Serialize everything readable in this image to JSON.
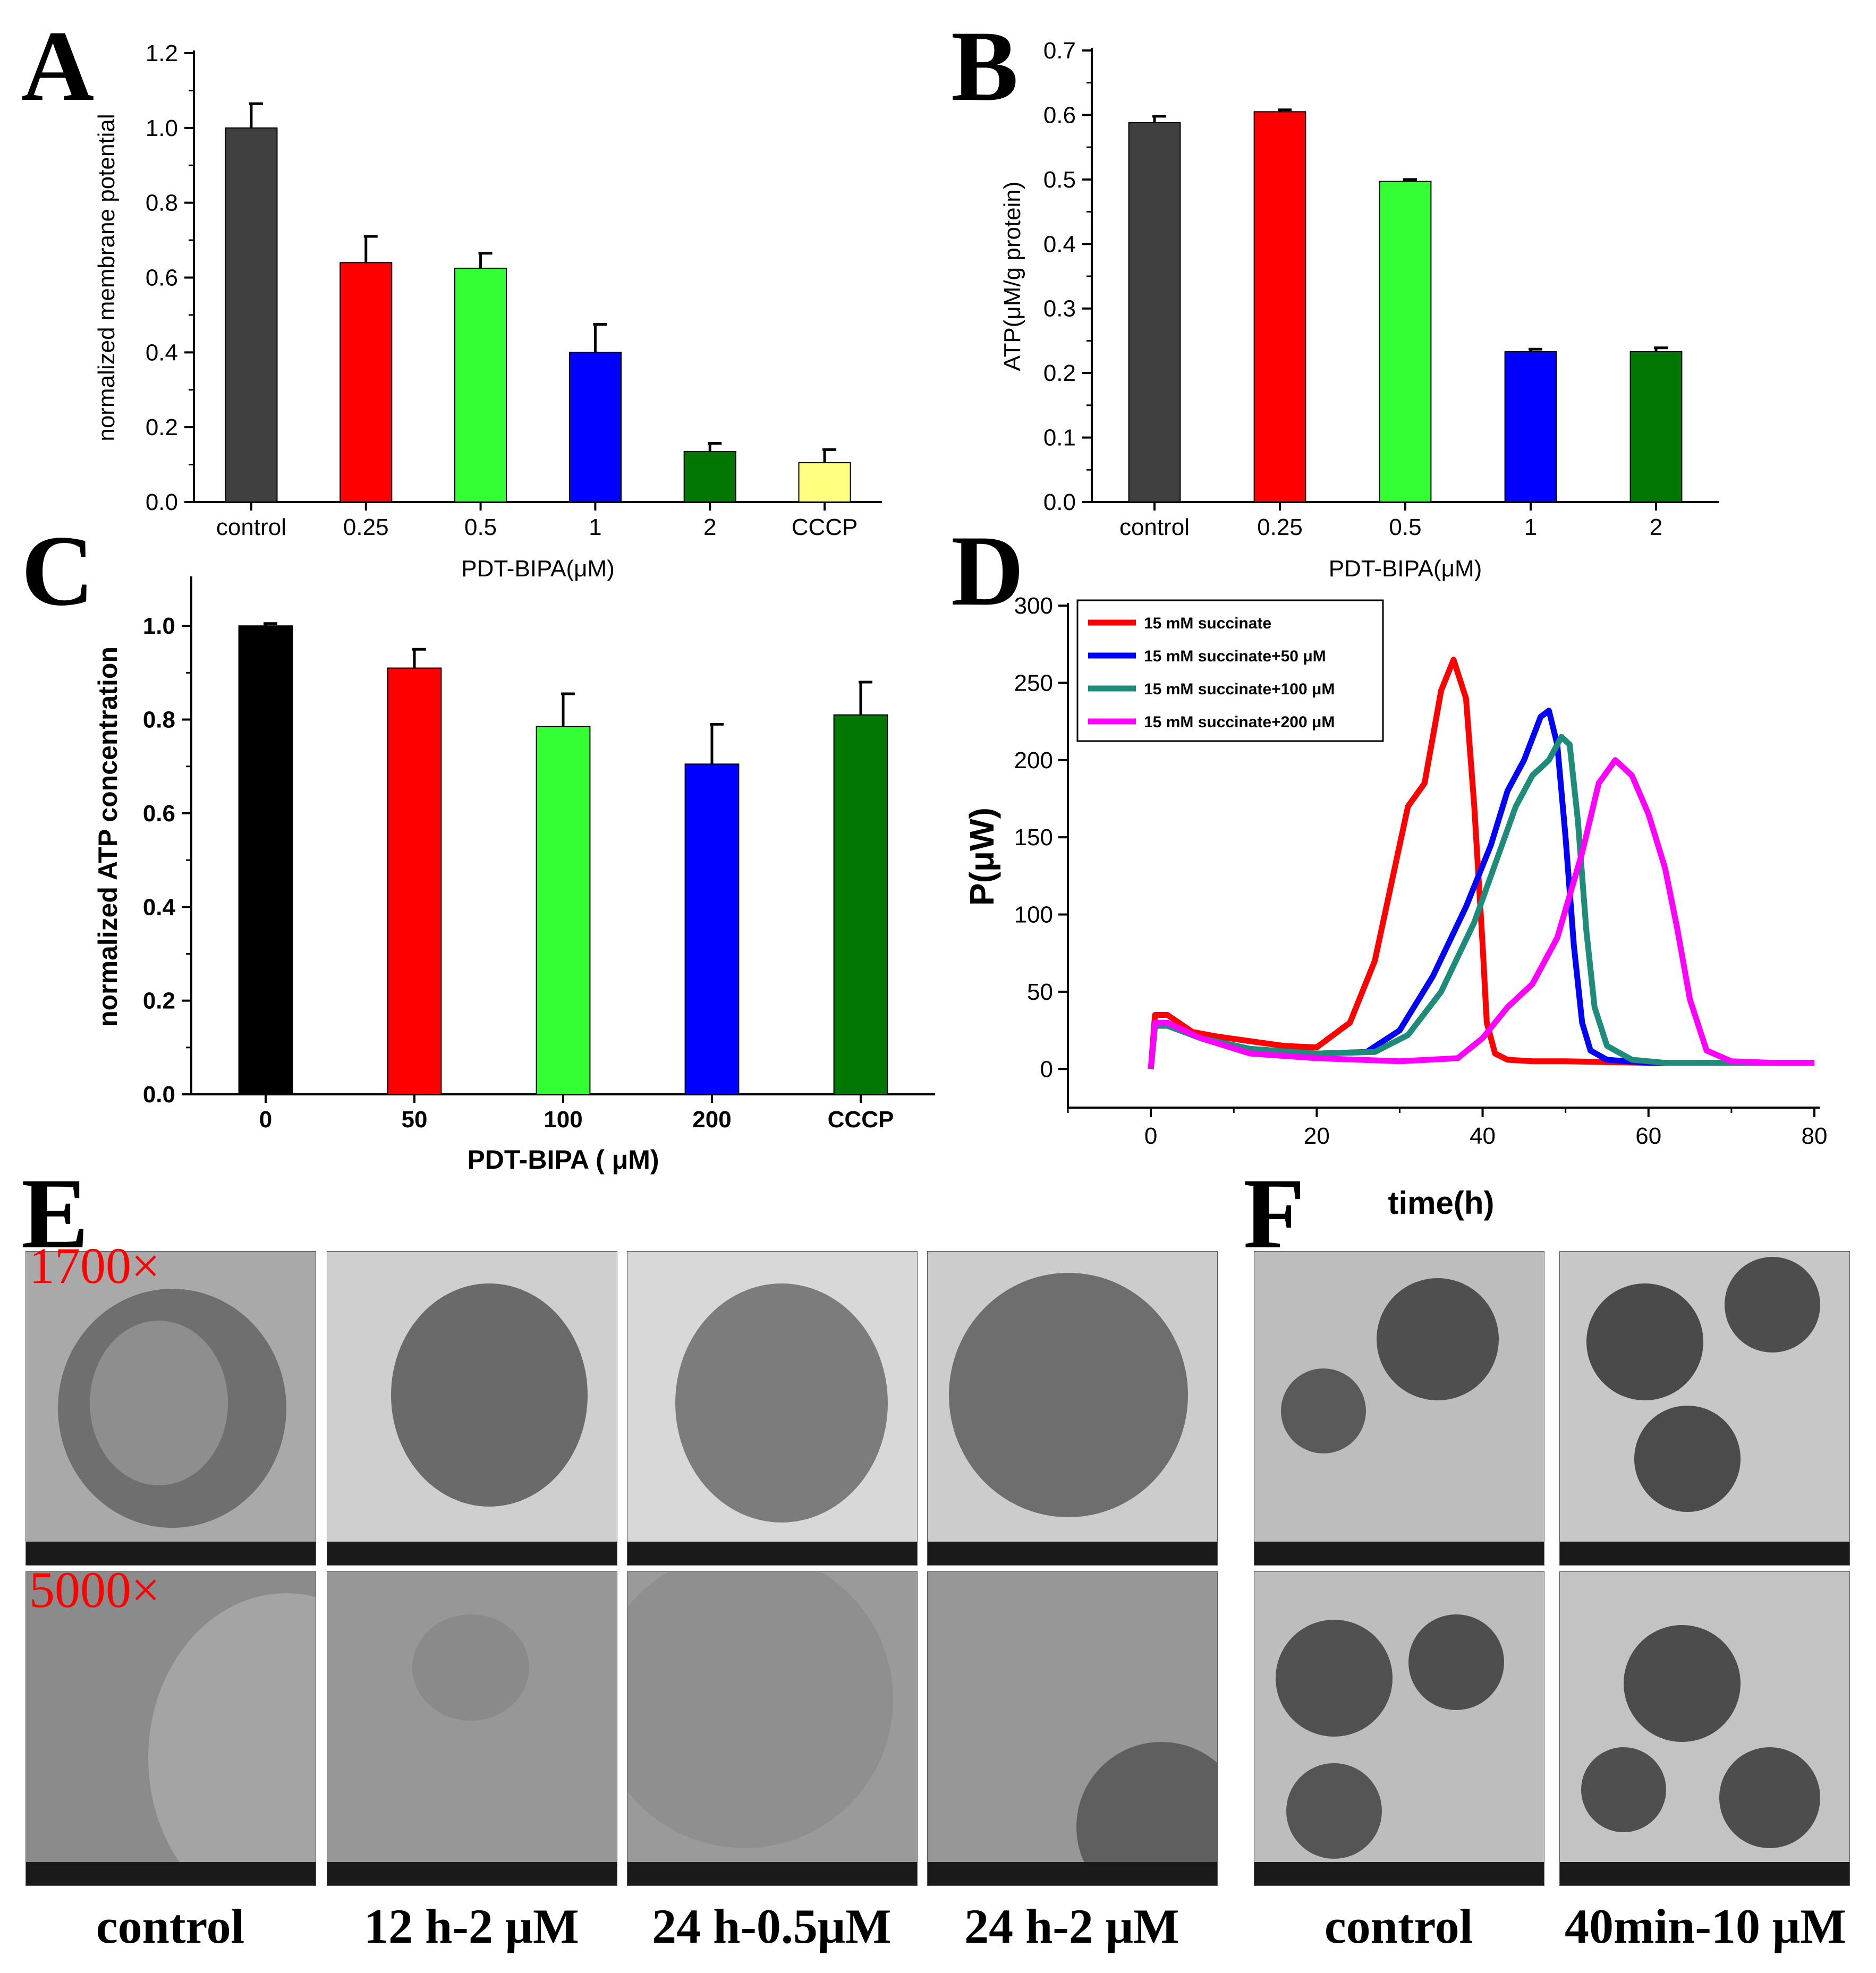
{
  "panels": {
    "A": "A",
    "B": "B",
    "C": "C",
    "D": "D",
    "E": "E",
    "F": "F"
  },
  "chart_data": [
    {
      "id": "A",
      "type": "bar",
      "title": "",
      "xlabel": "PDT-BIPA(μM)",
      "ylabel": "normalized membrane potential",
      "categories": [
        "control",
        "0.25",
        "0.5",
        "1",
        "2",
        "CCCP"
      ],
      "values": [
        1.0,
        0.64,
        0.625,
        0.4,
        0.135,
        0.105
      ],
      "errors": [
        0.065,
        0.07,
        0.04,
        0.075,
        0.022,
        0.035
      ],
      "colors": [
        "#404040",
        "#ff0000",
        "#33ff33",
        "#0000ff",
        "#007700",
        "#ffff80"
      ],
      "ylim": [
        0,
        1.2
      ],
      "yticks": [
        0.0,
        0.2,
        0.4,
        0.6,
        0.8,
        1.0,
        1.2
      ]
    },
    {
      "id": "B",
      "type": "bar",
      "title": "",
      "xlabel": "PDT-BIPA(μM)",
      "ylabel": "ATP(μM/g protein)",
      "categories": [
        "control",
        "0.25",
        "0.5",
        "1",
        "2"
      ],
      "values": [
        0.588,
        0.605,
        0.497,
        0.233,
        0.233
      ],
      "errors": [
        0.01,
        0.003,
        0.003,
        0.004,
        0.006
      ],
      "colors": [
        "#404040",
        "#ff0000",
        "#33ff33",
        "#0000ff",
        "#007700"
      ],
      "ylim": [
        0,
        0.7
      ],
      "yticks": [
        0.0,
        0.1,
        0.2,
        0.3,
        0.4,
        0.5,
        0.6,
        0.7
      ]
    },
    {
      "id": "C",
      "type": "bar",
      "title": "",
      "xlabel": "PDT-BIPA ( μM)",
      "ylabel": "normalized ATP concentration",
      "categories": [
        "0",
        "50",
        "100",
        "200",
        "CCCP"
      ],
      "values": [
        1.0,
        0.91,
        0.785,
        0.705,
        0.81
      ],
      "errors": [
        0.005,
        0.04,
        0.07,
        0.085,
        0.07
      ],
      "colors": [
        "#000000",
        "#ff0000",
        "#33ff33",
        "#0000ff",
        "#007700"
      ],
      "ylim": [
        0,
        1.1
      ],
      "yticks": [
        0.0,
        0.2,
        0.4,
        0.6,
        0.8,
        1.0
      ]
    },
    {
      "id": "D",
      "type": "line",
      "title": "",
      "xlabel": "time(h)",
      "ylabel": "P(μW)",
      "xlim": [
        -10,
        80
      ],
      "ylim": [
        -25,
        300
      ],
      "xticks": [
        0,
        20,
        40,
        60,
        80
      ],
      "yticks": [
        0,
        50,
        100,
        150,
        200,
        250,
        300
      ],
      "legend_position": "top-left",
      "series": [
        {
          "name": "15 mM succinate",
          "color": "#ff0000",
          "x": [
            0,
            0.5,
            2,
            5,
            8,
            12,
            16,
            20,
            24,
            27,
            30,
            31,
            33,
            35,
            36.5,
            38,
            39,
            40,
            40.5,
            41.5,
            43,
            46,
            50,
            60,
            70,
            80
          ],
          "y": [
            0,
            35,
            35,
            24,
            21,
            18,
            15,
            14,
            30,
            70,
            145,
            170,
            185,
            245,
            265,
            240,
            170,
            80,
            30,
            10,
            6,
            5,
            5,
            4,
            4,
            4
          ]
        },
        {
          "name": "15 mM succinate+50 μM",
          "color": "#0000ff",
          "x": [
            0,
            0.5,
            2,
            6,
            12,
            20,
            26,
            30,
            34,
            38,
            41,
            43,
            45,
            47,
            48,
            49,
            50,
            51,
            52,
            53,
            55,
            60,
            70,
            80
          ],
          "y": [
            0,
            28,
            28,
            20,
            13,
            10,
            11,
            25,
            60,
            105,
            145,
            180,
            200,
            228,
            232,
            210,
            150,
            80,
            30,
            12,
            6,
            4,
            4,
            4
          ]
        },
        {
          "name": "15 mM succinate+100 μM",
          "color": "#1f8b7a",
          "x": [
            0,
            0.5,
            2,
            6,
            12,
            20,
            27,
            31,
            35,
            39,
            42,
            44,
            46,
            48,
            49.5,
            50.5,
            51.5,
            52.5,
            53.5,
            55,
            58,
            62,
            70,
            80
          ],
          "y": [
            0,
            28,
            28,
            20,
            13,
            10,
            11,
            22,
            50,
            95,
            140,
            170,
            190,
            200,
            215,
            210,
            160,
            90,
            40,
            15,
            6,
            4,
            4,
            4
          ]
        },
        {
          "name": "15 mM succinate+200 μM",
          "color": "#ff00ff",
          "x": [
            0,
            0.5,
            2,
            6,
            12,
            20,
            30,
            37,
            40,
            43,
            46,
            49,
            52,
            54,
            56,
            58,
            60,
            62,
            63.5,
            65,
            67,
            70,
            75,
            80
          ],
          "y": [
            0,
            30,
            30,
            20,
            10,
            7,
            5,
            7,
            20,
            40,
            55,
            85,
            140,
            185,
            200,
            190,
            165,
            130,
            90,
            45,
            12,
            5,
            4,
            4
          ]
        }
      ]
    }
  ],
  "micrographs": {
    "E": {
      "magnifications": [
        "1700×",
        "5000×"
      ],
      "captions": [
        "control",
        "12 h-2 μM",
        "24 h-0.5μM",
        "24 h-2 μM"
      ]
    },
    "F": {
      "captions": [
        "control",
        "40min-10 μM"
      ]
    }
  }
}
